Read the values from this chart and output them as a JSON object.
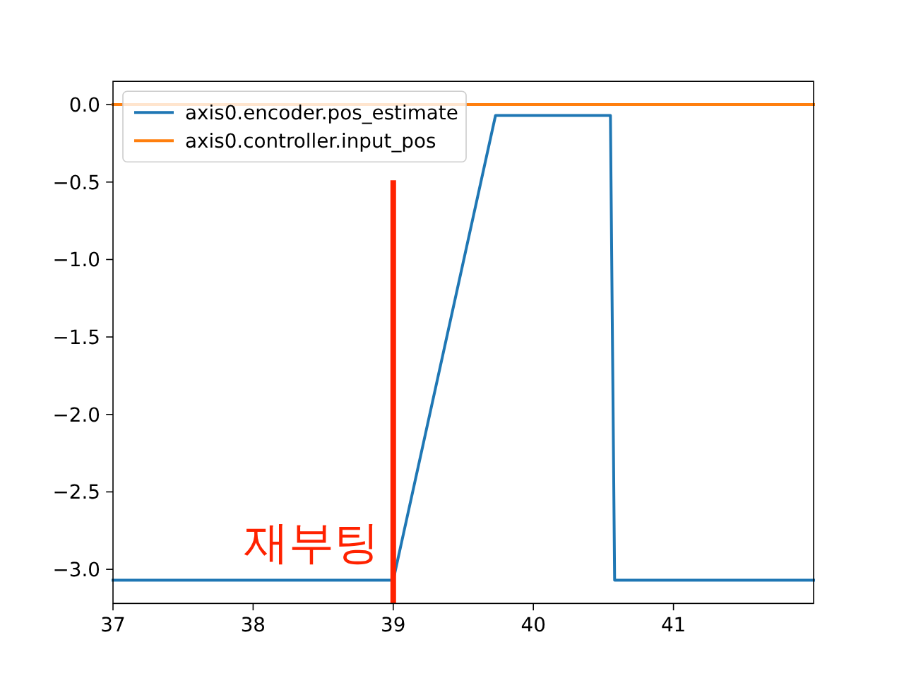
{
  "chart_data": {
    "type": "line",
    "series": [
      {
        "name": "axis0.encoder.pos_estimate",
        "color": "#1f77b4",
        "x": [
          37,
          39.0,
          39.73,
          40.55,
          40.58,
          42
        ],
        "values": [
          -3.07,
          -3.07,
          -0.07,
          -0.07,
          -3.07,
          -3.07
        ]
      },
      {
        "name": "axis0.controller.input_pos",
        "color": "#ff7f0e",
        "x": [
          37,
          42
        ],
        "values": [
          0,
          0
        ]
      }
    ],
    "xlim": [
      37,
      42
    ],
    "ylim": [
      -3.22,
      0.15
    ],
    "xticks": [
      37,
      38,
      39,
      40,
      41
    ],
    "yticks": [
      {
        "value": 0,
        "label": "0.0"
      },
      {
        "value": -0.5,
        "label": "−0.5"
      },
      {
        "value": -1,
        "label": "−1.0"
      },
      {
        "value": -1.5,
        "label": "−1.5"
      },
      {
        "value": -2,
        "label": "−2.0"
      },
      {
        "value": -2.5,
        "label": "−2.5"
      },
      {
        "value": -3,
        "label": "−3.0"
      }
    ],
    "ref_lines": [
      {
        "axis": "x",
        "value": 39,
        "color": "#ff2200",
        "label": "재부팅"
      }
    ],
    "legend": "top left",
    "grid": false
  }
}
